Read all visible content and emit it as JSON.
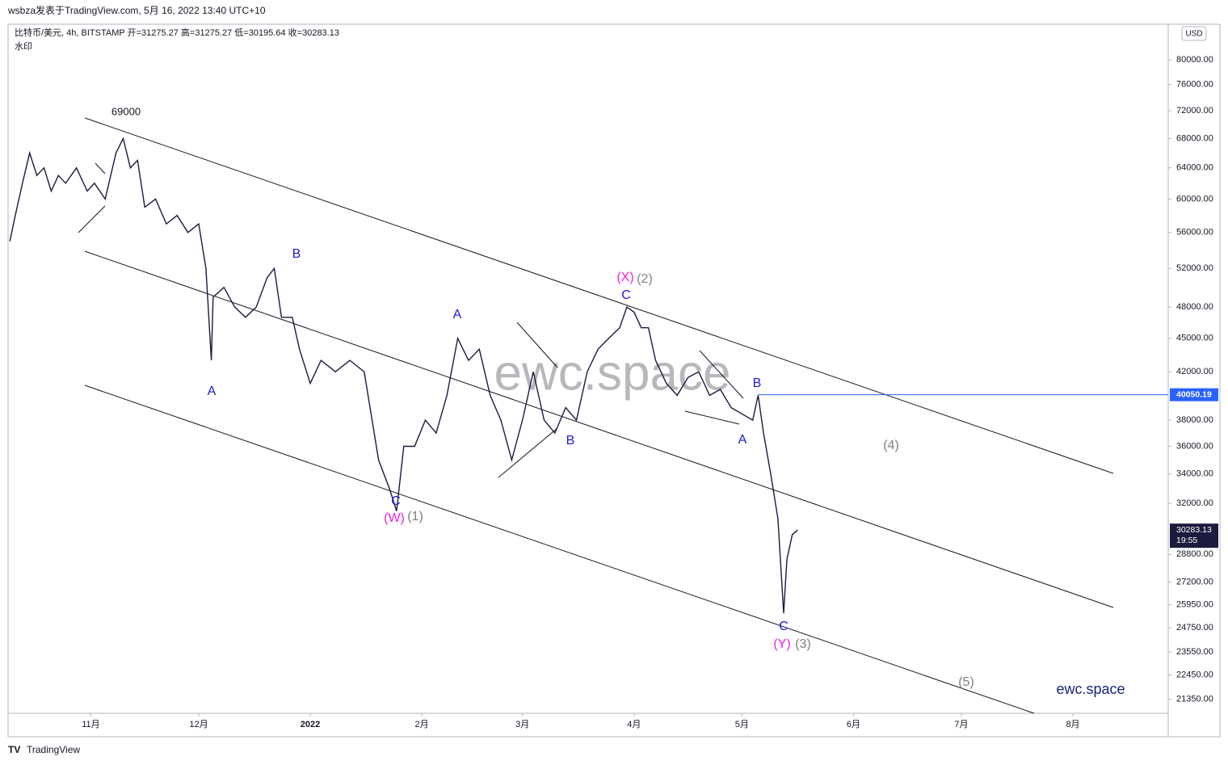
{
  "header": {
    "byline": "wsbza发表于TradingView.com, 5月 16, 2022 13:40 UTC+10",
    "legend": "比特币/美元, 4h, BITSTAMP 开=31275.27 高=31275.27 低=30195.64 收=30283.13",
    "watermark_note": "水印",
    "watermark": "ewc.space",
    "brand": "ewc.space",
    "currency": "USD",
    "footer": "TradingView"
  },
  "chart_data": {
    "type": "line",
    "log_y": true,
    "color": "#1c1a3e",
    "x": [
      8.5,
      10,
      12,
      14,
      16,
      18,
      20,
      22,
      24,
      27,
      30,
      32,
      35,
      38,
      40,
      42,
      44,
      46,
      49,
      52,
      55,
      58,
      61,
      63,
      64.5,
      65,
      68,
      71,
      74,
      77,
      80,
      82,
      84,
      87,
      89,
      92,
      95,
      99,
      103,
      107,
      111,
      114,
      116,
      118,
      121,
      124,
      127,
      130,
      133,
      136,
      139,
      142,
      145,
      148,
      151,
      154,
      157,
      160,
      163,
      166,
      169,
      172,
      175,
      178,
      180,
      182,
      184,
      186,
      188,
      191,
      194,
      197,
      200,
      203,
      206,
      209,
      212,
      215,
      216.5,
      218,
      220,
      222,
      223.6,
      224.5,
      226,
      227.5
    ],
    "series": [
      {
        "name": "比特币/美元",
        "color": "#1c1a3e",
        "values": [
          55000,
          58000,
          62000,
          66000,
          63000,
          64000,
          61000,
          63000,
          62000,
          64000,
          61000,
          62000,
          60000,
          66000,
          68000,
          64000,
          65000,
          59000,
          60000,
          57000,
          58000,
          56000,
          57000,
          52000,
          43000,
          49000,
          50000,
          48000,
          47000,
          48000,
          51000,
          52000,
          47000,
          47000,
          44000,
          41000,
          43000,
          42000,
          43000,
          42000,
          35000,
          33000,
          31500,
          36000,
          36000,
          38000,
          37000,
          40000,
          45000,
          43000,
          44000,
          40000,
          38000,
          35000,
          38000,
          42000,
          38000,
          37000,
          39000,
          38000,
          42000,
          44000,
          45000,
          46000,
          48000,
          47500,
          46000,
          46000,
          43000,
          41000,
          40000,
          41500,
          42000,
          40000,
          40500,
          39000,
          38500,
          38000,
          40000,
          37000,
          34000,
          31000,
          25500,
          28500,
          30000,
          30283.13
        ]
      }
    ],
    "xlim": [
      8,
      330.5
    ],
    "xticks": [
      {
        "value": 31,
        "label": "11月"
      },
      {
        "value": 61,
        "label": "12月"
      },
      {
        "value": 92,
        "label": "2022"
      },
      {
        "value": 123,
        "label": "2月"
      },
      {
        "value": 151,
        "label": "3月"
      },
      {
        "value": 182,
        "label": "4月"
      },
      {
        "value": 212,
        "label": "5月"
      },
      {
        "value": 243,
        "label": "6月"
      },
      {
        "value": 273,
        "label": "7月"
      },
      {
        "value": 304,
        "label": "8月"
      }
    ],
    "ylim": [
      20740,
      86100
    ],
    "yticks": [
      {
        "value": 80000,
        "label": "80000.00"
      },
      {
        "value": 76000,
        "label": "76000.00"
      },
      {
        "value": 72000,
        "label": "72000.00"
      },
      {
        "value": 68000,
        "label": "68000.00"
      },
      {
        "value": 64000,
        "label": "64000.00"
      },
      {
        "value": 60000,
        "label": "60000.00"
      },
      {
        "value": 56000,
        "label": "56000.00"
      },
      {
        "value": 52000,
        "label": "52000.00"
      },
      {
        "value": 48000,
        "label": "48000.00"
      },
      {
        "value": 45000,
        "label": "45000.00"
      },
      {
        "value": 42000,
        "label": "42000.00"
      },
      {
        "value": 38000,
        "label": "38000.00"
      },
      {
        "value": 36000,
        "label": "36000.00"
      },
      {
        "value": 34000,
        "label": "34000.00"
      },
      {
        "value": 32000,
        "label": "32000.00"
      },
      {
        "value": 28800,
        "label": "28800.00"
      },
      {
        "value": 27200,
        "label": "27200.00"
      },
      {
        "value": 25950,
        "label": "25950.00"
      },
      {
        "value": 24750,
        "label": "24750.00"
      },
      {
        "value": 23550,
        "label": "23550.00"
      },
      {
        "value": 22450,
        "label": "22450.00"
      },
      {
        "value": 21350,
        "label": "21350.00"
      }
    ],
    "price_line": {
      "value": 40050.19,
      "label": "40050.19",
      "color": "#2962ff"
    },
    "last_price": {
      "value": 30283.13,
      "label": "30283.13",
      "countdown": "19:55"
    },
    "annotations": [
      {
        "text": "69000",
        "color": "#131722"
      },
      {
        "text": "A",
        "color": "#1a1ad8"
      },
      {
        "text": "B",
        "color": "#1a1ad8"
      },
      {
        "text": "C",
        "color": "#1a1ad8"
      },
      {
        "text": "(W)",
        "color": "#e91ee8"
      },
      {
        "text": "(1)",
        "color": "#808080"
      },
      {
        "text": "A",
        "color": "#1a1ad8"
      },
      {
        "text": "B",
        "color": "#1a1ad8"
      },
      {
        "text": "C",
        "color": "#1a1ad8"
      },
      {
        "text": "(X)",
        "color": "#e91ee8"
      },
      {
        "text": "(2)",
        "color": "#808080"
      },
      {
        "text": "B",
        "color": "#1a1ad8"
      },
      {
        "text": "A",
        "color": "#1a1ad8"
      },
      {
        "text": "(4)",
        "color": "#808080"
      },
      {
        "text": "C",
        "color": "#1a1ad8"
      },
      {
        "text": "(Y)",
        "color": "#e91ee8"
      },
      {
        "text": "(3)",
        "color": "#808080"
      },
      {
        "text": "(5)",
        "color": "#808080"
      }
    ]
  }
}
